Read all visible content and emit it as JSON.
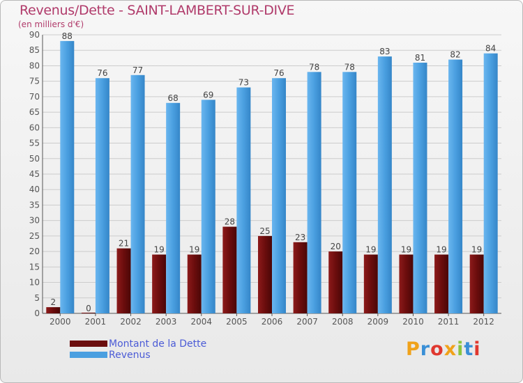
{
  "title": "Revenus/Dette - SAINT-LAMBERT-SUR-DIVE",
  "subtitle": "(en milliers d'€)",
  "logo": {
    "letters": [
      "P",
      "r",
      "o",
      "x",
      "i",
      "t",
      "i"
    ],
    "colors": [
      "#f0a21a",
      "#3a8fd6",
      "#e0382f",
      "#f0a21a",
      "#8bc53f",
      "#3a8fd6",
      "#e0382f"
    ]
  },
  "colors": {
    "dette": "#6b0d0d",
    "revenus": "#4a9fe0",
    "grid": "#cccccc",
    "axis": "#555555"
  },
  "chart_data": {
    "type": "bar",
    "categories": [
      "2000",
      "2001",
      "2002",
      "2003",
      "2004",
      "2005",
      "2006",
      "2007",
      "2008",
      "2009",
      "2010",
      "2011",
      "2012"
    ],
    "series": [
      {
        "name": "Montant de la Dette",
        "values": [
          2,
          0,
          21,
          19,
          19,
          28,
          25,
          23,
          20,
          19,
          19,
          19,
          19
        ]
      },
      {
        "name": "Revenus",
        "values": [
          88,
          76,
          77,
          68,
          69,
          73,
          76,
          78,
          78,
          83,
          81,
          82,
          84
        ]
      }
    ],
    "ylim": [
      0,
      90
    ],
    "yticks": [
      0,
      5,
      10,
      15,
      20,
      25,
      30,
      35,
      40,
      45,
      50,
      55,
      60,
      65,
      70,
      75,
      80,
      85,
      90
    ],
    "grid": true,
    "legend_position": "bottom-left"
  }
}
